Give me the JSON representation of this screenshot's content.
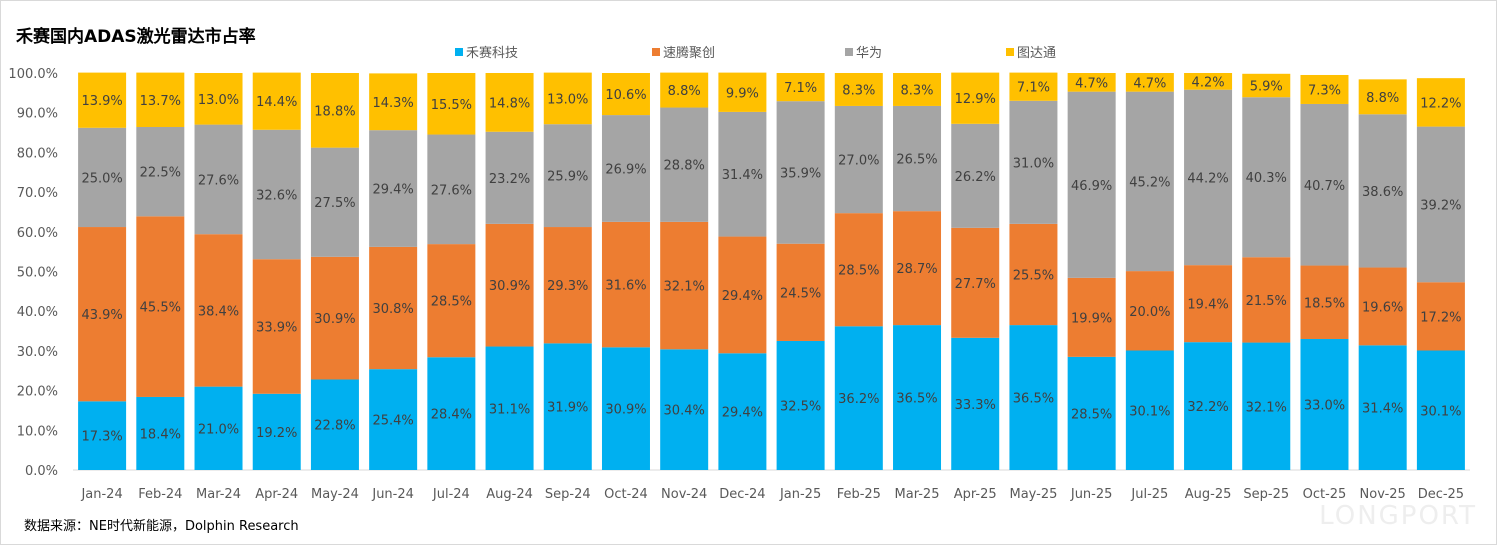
{
  "chart_data": {
    "type": "bar",
    "stacked": true,
    "title": "禾赛国内ADAS激光雷达市占率",
    "source": "数据来源：NE时代新能源，Dolphin Research",
    "watermark": "LONGPORT",
    "xlabel": "",
    "ylabel": "",
    "ylim": [
      0,
      100
    ],
    "yticks": [
      "0.0%",
      "10.0%",
      "20.0%",
      "30.0%",
      "40.0%",
      "50.0%",
      "60.0%",
      "70.0%",
      "80.0%",
      "90.0%",
      "100.0%"
    ],
    "legend_position": "top",
    "categories": [
      "Jan-24",
      "Feb-24",
      "Mar-24",
      "Apr-24",
      "May-24",
      "Jun-24",
      "Jul-24",
      "Aug-24",
      "Sep-24",
      "Oct-24",
      "Nov-24",
      "Dec-24",
      "Jan-25",
      "Feb-25",
      "Mar-25",
      "Apr-25",
      "May-25",
      "Jun-25",
      "Jul-25",
      "Aug-25",
      "Sep-25",
      "Oct-25",
      "Nov-25",
      "Dec-25"
    ],
    "series": [
      {
        "name": "禾赛科技",
        "color": "#00b0f0",
        "values": [
          17.3,
          18.4,
          21.0,
          19.2,
          22.8,
          25.4,
          28.4,
          31.1,
          31.9,
          30.9,
          30.4,
          29.4,
          32.5,
          36.2,
          36.5,
          33.3,
          36.5,
          28.5,
          30.1,
          32.2,
          32.1,
          33.0,
          31.4,
          30.1
        ]
      },
      {
        "name": "速腾聚创",
        "color": "#ed7d31",
        "values": [
          43.9,
          45.5,
          38.4,
          33.9,
          30.9,
          30.8,
          28.5,
          30.9,
          29.3,
          31.6,
          32.1,
          29.4,
          24.5,
          28.5,
          28.7,
          27.7,
          25.5,
          19.9,
          20.0,
          19.4,
          21.5,
          18.5,
          19.6,
          17.2
        ]
      },
      {
        "name": "华为",
        "color": "#a5a5a5",
        "values": [
          25.0,
          22.5,
          27.6,
          32.6,
          27.5,
          29.4,
          27.6,
          23.2,
          25.9,
          26.9,
          28.8,
          31.4,
          35.9,
          27.0,
          26.5,
          26.2,
          31.0,
          46.9,
          45.2,
          44.2,
          40.3,
          40.7,
          38.6,
          39.2
        ]
      },
      {
        "name": "图达通",
        "color": "#ffc000",
        "values": [
          13.9,
          13.7,
          13.0,
          14.4,
          18.8,
          14.3,
          15.5,
          14.8,
          13.0,
          10.6,
          8.8,
          9.9,
          7.1,
          8.3,
          8.3,
          12.9,
          7.1,
          4.7,
          4.7,
          4.2,
          5.9,
          7.3,
          8.8,
          12.2
        ]
      }
    ]
  }
}
